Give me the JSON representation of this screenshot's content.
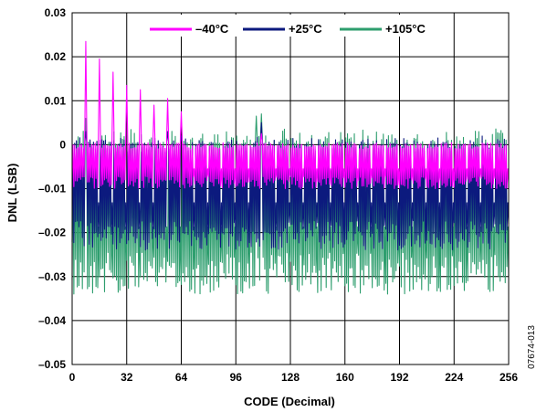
{
  "chart_data": {
    "type": "line",
    "title": "",
    "xlabel": "CODE (Decimal)",
    "ylabel": "DNL (LSB)",
    "xlim": [
      0,
      256
    ],
    "ylim": [
      -0.05,
      0.03
    ],
    "xticks": [
      0,
      32,
      64,
      96,
      128,
      160,
      192,
      224,
      256
    ],
    "yticks": [
      -0.05,
      -0.04,
      -0.03,
      -0.02,
      -0.01,
      0,
      0.01,
      0.02,
      0.03
    ],
    "xtick_labels": [
      "0",
      "32",
      "64",
      "96",
      "128",
      "160",
      "192",
      "224",
      "256"
    ],
    "ytick_labels": [
      "–0.05",
      "–0.04",
      "–0.03",
      "–0.02",
      "–0.01",
      "0",
      "0.01",
      "0.02",
      "0.03"
    ],
    "grid": true,
    "legend_position": "top-center",
    "series": [
      {
        "name": "+105°C",
        "color": "#2e9e6e",
        "envelope": {
          "positive": 0.004,
          "negative": -0.034,
          "pattern": "alternating per code, most negative near even codes"
        },
        "peaks": [
          [
            16,
            0.006
          ],
          [
            216,
            0.0065
          ],
          [
            222,
            0.007
          ]
        ]
      },
      {
        "name": "+25°C",
        "color": "#0c1a7e",
        "envelope": {
          "positive": 0.002,
          "negative": -0.024,
          "pattern": "alternating per code"
        },
        "peaks": [
          [
            16,
            0.003
          ],
          [
            112,
            0.003
          ],
          [
            128,
            0.002
          ],
          [
            222,
            0.005
          ]
        ]
      },
      {
        "name": "–40°C",
        "color": "#ff00ff",
        "envelope": {
          "positive": 0.0005,
          "negative": -0.01,
          "pattern": "alternating per code"
        },
        "peaks": [
          [
            16,
            0.0235
          ],
          [
            32,
            0.0195
          ],
          [
            48,
            0.0165
          ],
          [
            64,
            0.0135
          ],
          [
            80,
            0.0125
          ],
          [
            96,
            0.009
          ],
          [
            112,
            0.0105
          ],
          [
            128,
            0.0075
          ],
          [
            222,
            0.0025
          ]
        ]
      }
    ],
    "legend": [
      "–40°C",
      "+25°C",
      "+105°C"
    ]
  },
  "figure_code": "07674-013"
}
